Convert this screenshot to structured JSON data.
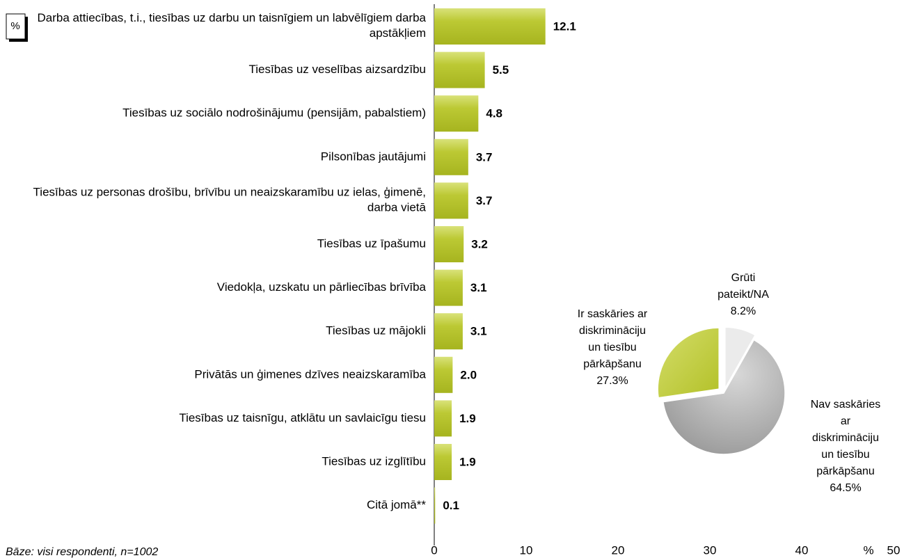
{
  "chart_data": [
    {
      "type": "barh",
      "unit_badge": "%",
      "x_unit": "%",
      "note": "Bāze: visi respondenti, n=1002",
      "categories": [
        "Darba attiecības, t.i., tiesības uz darbu un taisnīgiem un labvēlīgiem darba apstākļiem",
        "Tiesības uz veselības aizsardzību",
        "Tiesības uz sociālo nodrošinājumu (pensijām, pabalstiem)",
        "Pilsonības jautājumi",
        "Tiesības uz personas drošību, brīvību un neaizskaramību uz ielas, ģimenē, darba vietā",
        "Tiesības uz īpašumu",
        "Viedokļa, uzskatu un pārliecības brīvība",
        "Tiesības uz mājokli",
        "Privātās un ģimenes dzīves neaizskaramība",
        "Tiesības uz taisnīgu, atklātu un savlaicīgu tiesu",
        "Tiesības uz izglītību",
        "Citā jomā**"
      ],
      "values": [
        12.1,
        5.5,
        4.8,
        3.7,
        3.7,
        3.2,
        3.1,
        3.1,
        2.0,
        1.9,
        1.9,
        0.1
      ],
      "value_labels": [
        "12.1",
        "5.5",
        "4.8",
        "3.7",
        "3.7",
        "3.2",
        "3.1",
        "3.1",
        "2.0",
        "1.9",
        "1.9",
        "0.1"
      ],
      "color": "#b8c62c",
      "xlim": [
        0,
        50
      ],
      "xticks": [
        0,
        10,
        20,
        30,
        40,
        50
      ],
      "grid": false
    },
    {
      "type": "pie",
      "labels": [
        [
          "Grūti",
          "pateikt/NA"
        ],
        [
          "Nav saskāries",
          "ar",
          "diskrimināciju",
          "un tiesību",
          "pārkāpšanu"
        ],
        [
          "Ir saskāries ar",
          "diskrimināciju",
          "un tiesību",
          "pārkāpšanu"
        ]
      ],
      "values": [
        8.2,
        64.5,
        27.3
      ],
      "value_labels": [
        "8.2%",
        "64.5%",
        "27.3%"
      ],
      "colors": [
        "#ebebeb",
        "#a6a6a6",
        "#c3cf36"
      ]
    }
  ]
}
